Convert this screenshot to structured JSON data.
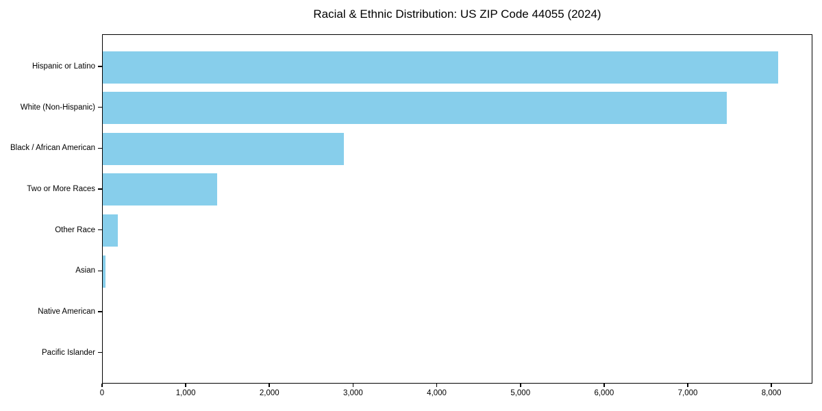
{
  "title": "Racial & Ethnic Distribution: US ZIP Code 44055 (2024)",
  "colors": {
    "bar": "#87CEEB",
    "axis": "#000000",
    "text": "#000000",
    "background": "#FFFFFF"
  },
  "chart_data": {
    "type": "bar",
    "orientation": "horizontal",
    "title": "Racial & Ethnic Distribution: US ZIP Code 44055 (2024)",
    "xlabel": "",
    "ylabel": "",
    "categories": [
      "Hispanic or Latino",
      "White (Non-Hispanic)",
      "Black / African American",
      "Two or More Races",
      "Other Race",
      "Asian",
      "Native American",
      "Pacific Islander"
    ],
    "values": [
      8085,
      7470,
      2890,
      1370,
      180,
      30,
      0,
      0
    ],
    "xlim": [
      0,
      8490
    ],
    "x_ticks": [
      0,
      1000,
      2000,
      3000,
      4000,
      5000,
      6000,
      7000,
      8000
    ],
    "x_tick_labels": [
      "0",
      "1,000",
      "2,000",
      "3,000",
      "4,000",
      "5,000",
      "6,000",
      "7,000",
      "8,000"
    ],
    "bar_color": "#87CEEB",
    "grid": false,
    "legend": false
  }
}
